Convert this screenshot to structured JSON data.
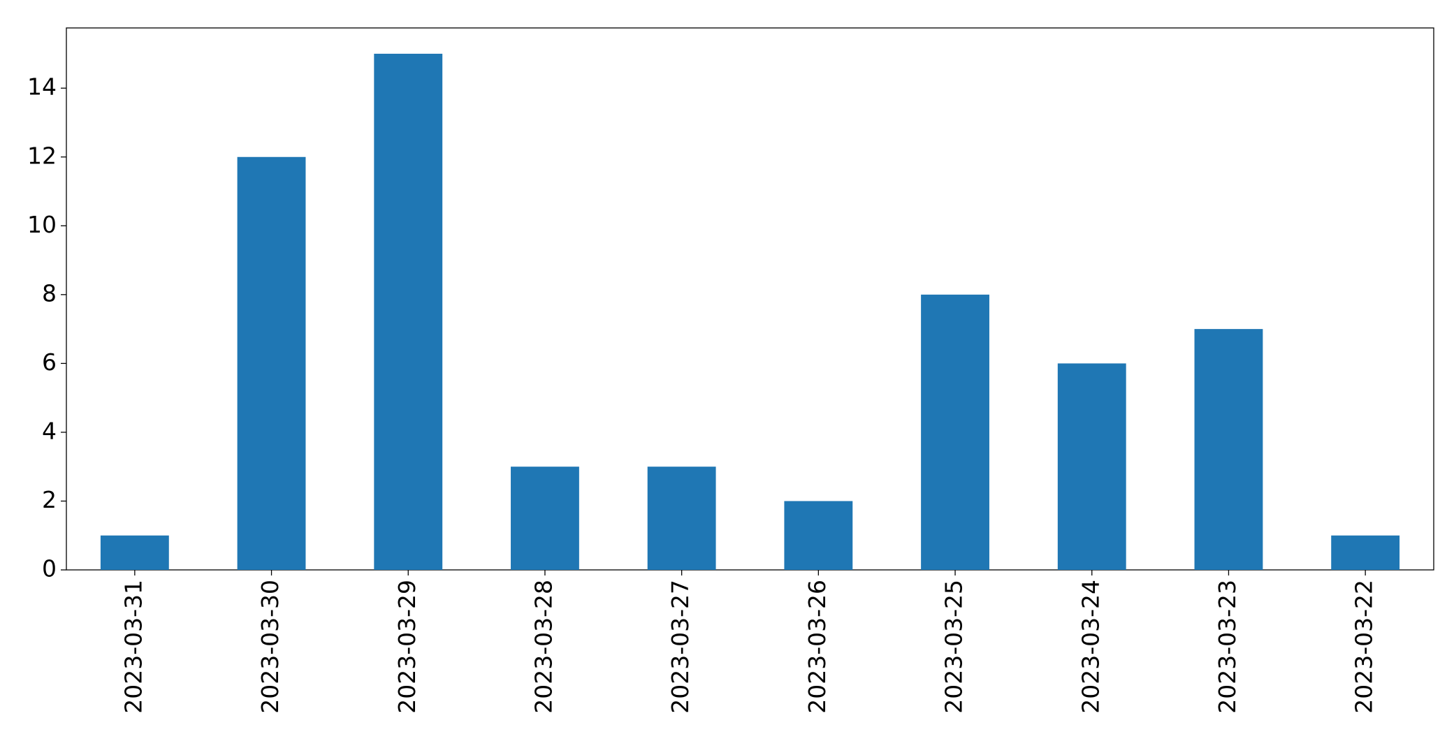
{
  "chart_data": {
    "type": "bar",
    "categories": [
      "2023-03-31",
      "2023-03-30",
      "2023-03-29",
      "2023-03-28",
      "2023-03-27",
      "2023-03-26",
      "2023-03-25",
      "2023-03-24",
      "2023-03-23",
      "2023-03-22"
    ],
    "values": [
      1,
      12,
      15,
      3,
      3,
      2,
      8,
      6,
      7,
      1
    ],
    "color": "#1f77b4",
    "ylim": [
      0,
      15.75
    ],
    "yticks": [
      0,
      2,
      4,
      6,
      8,
      10,
      12,
      14
    ],
    "grid": false
  }
}
